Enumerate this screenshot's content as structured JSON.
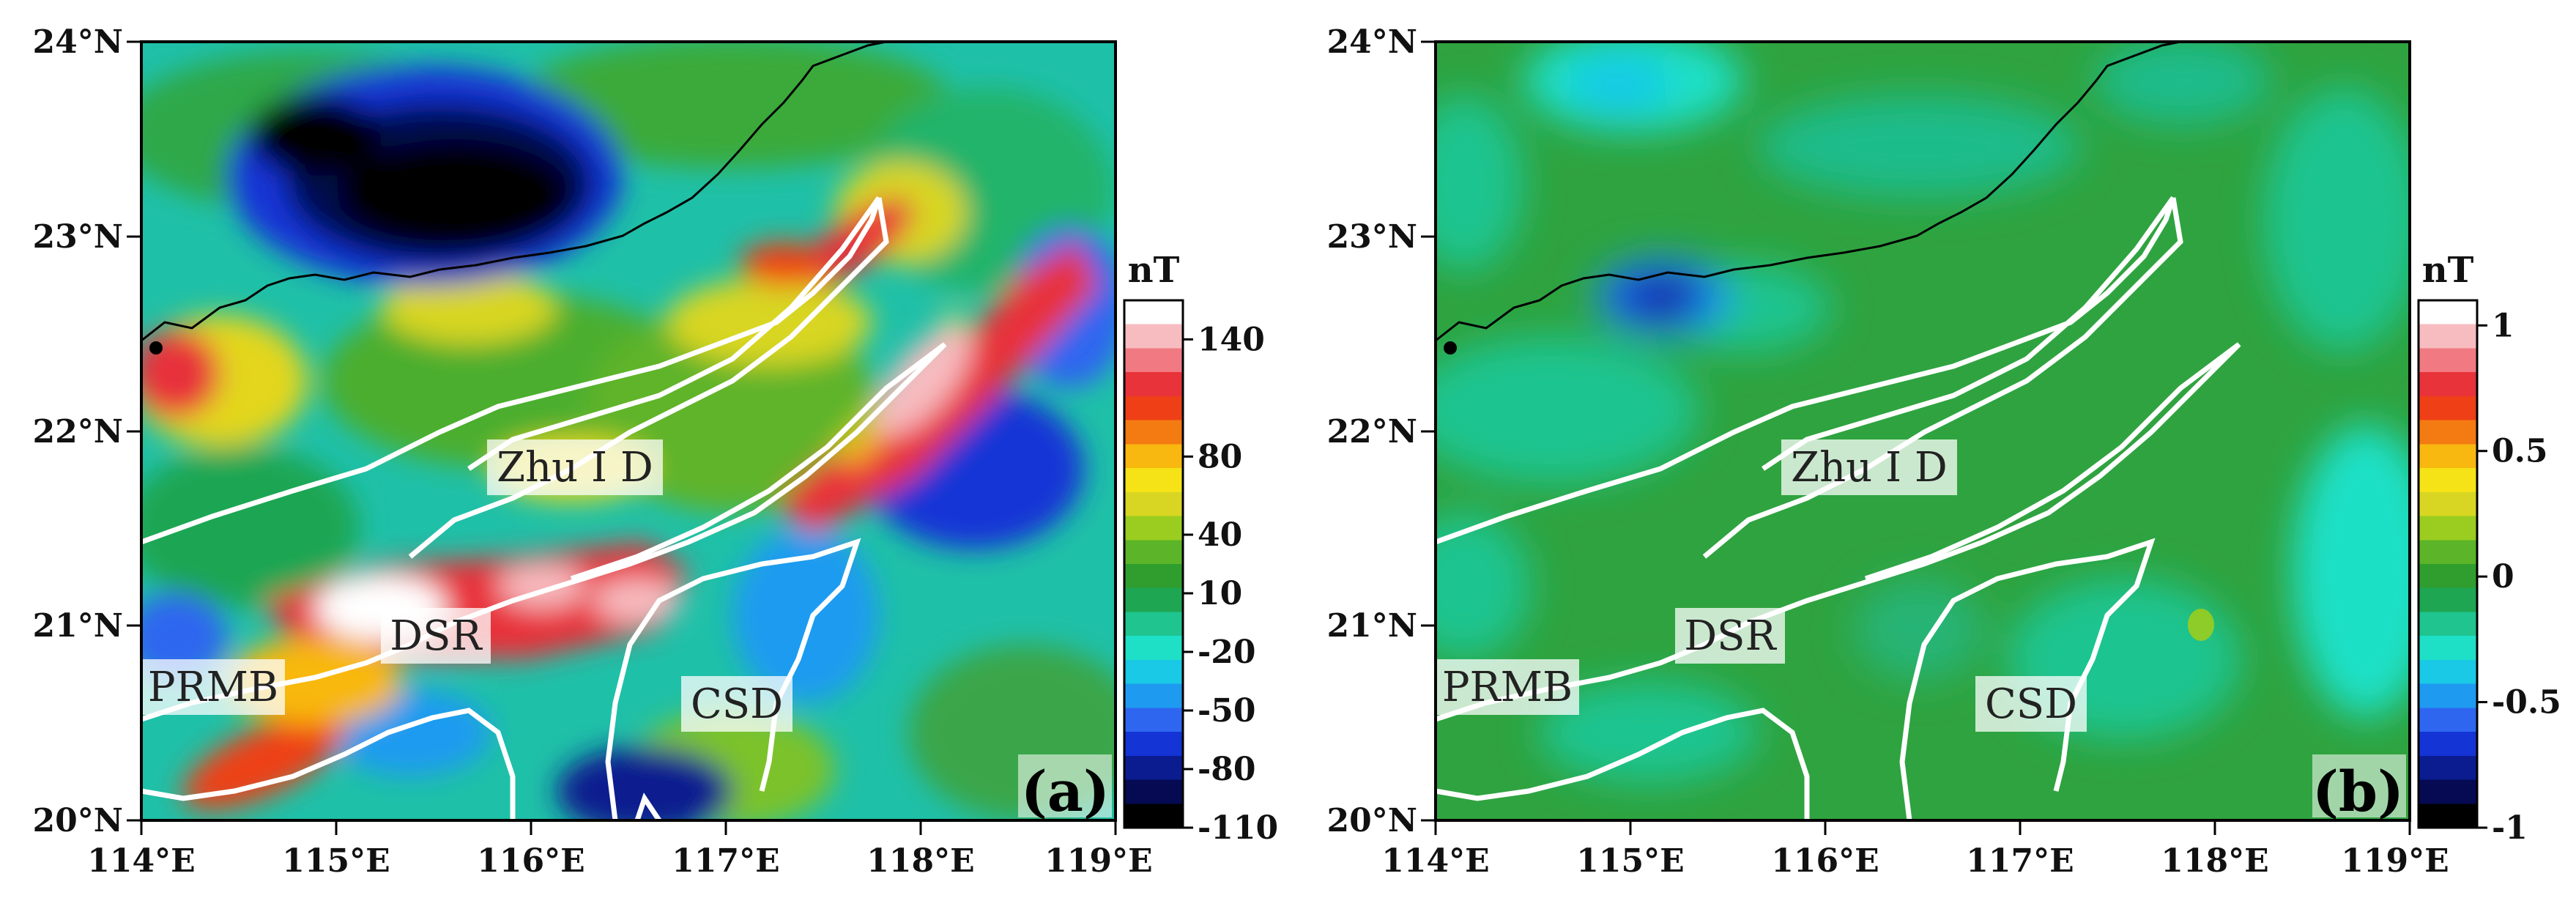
{
  "panels": [
    {
      "id": "a",
      "panel_label": "(a)",
      "colorbar_unit": "nT",
      "colorbar_ticks": [
        "140",
        "80",
        "40",
        "10",
        "-20",
        "-50",
        "-80",
        "-110"
      ],
      "colorbar_range": [
        -110,
        160
      ],
      "region_labels": [
        "Zhu I D",
        "DSR",
        "PRMB",
        "CSD"
      ]
    },
    {
      "id": "b",
      "panel_label": "(b)",
      "colorbar_unit": "nT",
      "colorbar_ticks": [
        "1",
        "0.5",
        "0",
        "-0.5",
        "-1"
      ],
      "colorbar_range": [
        -1,
        1.1
      ],
      "region_labels": [
        "Zhu I D",
        "DSR",
        "PRMB",
        "CSD"
      ]
    }
  ],
  "axes": {
    "x_ticks": [
      "114°E",
      "115°E",
      "116°E",
      "117°E",
      "118°E",
      "119°E"
    ],
    "y_ticks": [
      "24°N",
      "23°N",
      "22°N",
      "21°N",
      "20°N"
    ],
    "lon_range": [
      114,
      119
    ],
    "lat_range": [
      20,
      24
    ]
  },
  "colors": {
    "cb_a": [
      "#000000",
      "#050a52",
      "#0a1c8f",
      "#1434d6",
      "#2f66f0",
      "#1e9bf0",
      "#19c9e6",
      "#1de0c6",
      "#1fc48f",
      "#1ea653",
      "#2f9e2e",
      "#5cb528",
      "#9acd1f",
      "#d8d622",
      "#f5e317",
      "#f8b80f",
      "#f47a12",
      "#ef3f17",
      "#e8333a",
      "#f17a82",
      "#f7bcc0",
      "#ffffff"
    ],
    "cb_b": [
      "#000000",
      "#050a52",
      "#0a1c8f",
      "#1434d6",
      "#2f66f0",
      "#1e9bf0",
      "#19c9e6",
      "#1de0c6",
      "#1fc48f",
      "#1ea653",
      "#2f9e2e",
      "#5cb528",
      "#9acd1f",
      "#d8d622",
      "#f5e317",
      "#f8b80f",
      "#f47a12",
      "#ef3f17",
      "#e8333a",
      "#f17a82",
      "#f7bcc0",
      "#ffffff"
    ],
    "boundary": "#ffffff",
    "coast": "#000000",
    "base_b": "#2fa33f"
  }
}
